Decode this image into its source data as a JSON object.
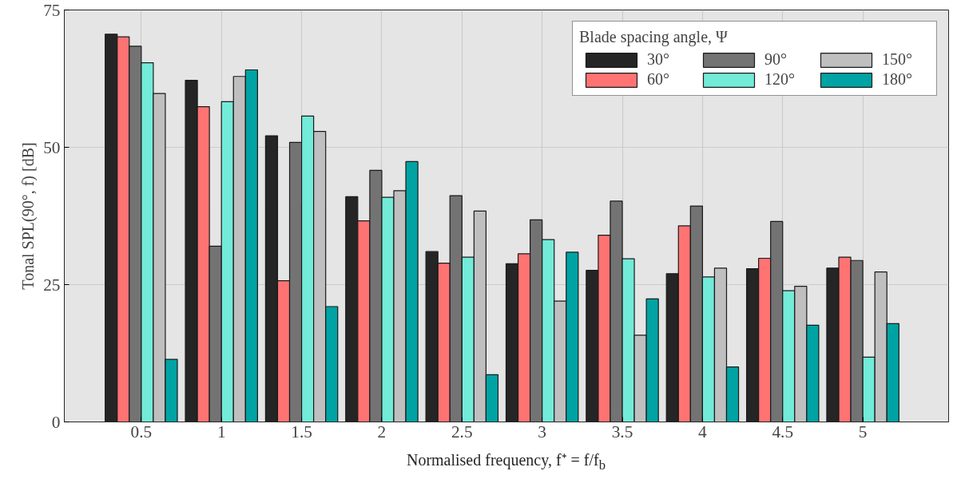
{
  "chart_data": {
    "type": "bar",
    "xlabel": "Normalised frequency, f⁺ = f/f$_{b}$",
    "ylabel": "Tonal SPL(90°, f) [dB]",
    "legend_title": "Blade spacing angle, Ψ",
    "categories": [
      "0.5",
      "1",
      "1.5",
      "2",
      "2.5",
      "3",
      "3.5",
      "4",
      "4.5",
      "5"
    ],
    "ylim": [
      0,
      75
    ],
    "yticks": [
      0,
      25,
      50,
      75
    ],
    "grid": true,
    "legend": "top right",
    "series": [
      {
        "name": "30°",
        "color": "#252525",
        "values": [
          70.6,
          62.2,
          52.1,
          41.0,
          31.0,
          28.8,
          27.6,
          27.0,
          27.9,
          28.0
        ]
      },
      {
        "name": "60°",
        "color": "#ff7373",
        "values": [
          70.1,
          57.4,
          25.7,
          36.6,
          28.9,
          30.6,
          34.0,
          35.7,
          29.8,
          30.0
        ]
      },
      {
        "name": "90°",
        "color": "#737373",
        "values": [
          68.4,
          32.0,
          50.9,
          45.8,
          41.2,
          36.8,
          40.2,
          39.3,
          36.5,
          29.4
        ]
      },
      {
        "name": "120°",
        "color": "#73ebd9",
        "values": [
          65.4,
          58.3,
          55.7,
          40.9,
          30.0,
          33.2,
          29.7,
          26.4,
          23.9,
          11.8
        ]
      },
      {
        "name": "150°",
        "color": "#bfbfbf",
        "values": [
          59.8,
          62.9,
          52.9,
          42.1,
          38.4,
          22.0,
          15.8,
          28.0,
          24.7,
          27.3
        ]
      },
      {
        "name": "180°",
        "color": "#00a3a3",
        "values": [
          11.4,
          64.1,
          21.0,
          47.4,
          8.6,
          30.9,
          22.4,
          10.0,
          17.6,
          17.9
        ]
      }
    ]
  }
}
